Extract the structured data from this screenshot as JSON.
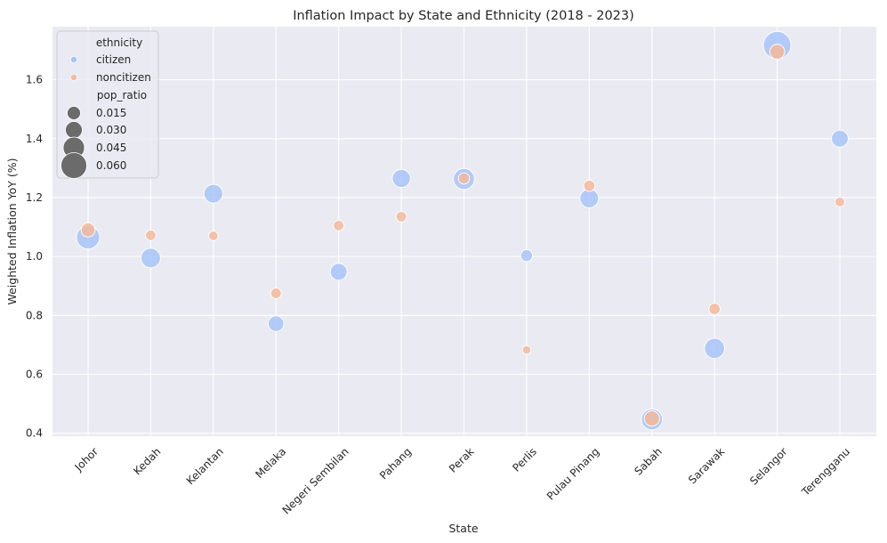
{
  "chart_data": {
    "type": "scatter",
    "title": "Inflation Impact by State and Ethnicity (2018 - 2023)",
    "xlabel": "State",
    "ylabel": "Weighted Inflation YoY (%)",
    "categories": [
      "Johor",
      "Kedah",
      "Kelantan",
      "Melaka",
      "Negeri Sembilan",
      "Pahang",
      "Perak",
      "Perlis",
      "Pulau Pinang",
      "Sabah",
      "Sarawak",
      "Selangor",
      "Terengganu"
    ],
    "ylim": [
      0.39,
      1.78
    ],
    "yticks": [
      "0.4",
      "0.6",
      "0.8",
      "1.0",
      "1.2",
      "1.4",
      "1.6"
    ],
    "grid": true,
    "background": "#eaeaf2",
    "series": [
      {
        "name": "citizen",
        "color": "#a8c4f8",
        "points": [
          {
            "state": "Johor",
            "y": 1.065,
            "size": 0.04
          },
          {
            "state": "Kedah",
            "y": 0.995,
            "size": 0.025
          },
          {
            "state": "Kelantan",
            "y": 1.213,
            "size": 0.022
          },
          {
            "state": "Melaka",
            "y": 0.772,
            "size": 0.013
          },
          {
            "state": "Negeri Sembilan",
            "y": 0.948,
            "size": 0.016
          },
          {
            "state": "Pahang",
            "y": 1.265,
            "size": 0.02
          },
          {
            "state": "Perak",
            "y": 1.263,
            "size": 0.03
          },
          {
            "state": "Perlis",
            "y": 1.003,
            "size": 0.005
          },
          {
            "state": "Pulau Pinang",
            "y": 1.197,
            "size": 0.022
          },
          {
            "state": "Sabah",
            "y": 0.447,
            "size": 0.03
          },
          {
            "state": "Sarawak",
            "y": 0.688,
            "size": 0.027
          },
          {
            "state": "Selangor",
            "y": 1.717,
            "size": 0.062
          },
          {
            "state": "Terengganu",
            "y": 1.4,
            "size": 0.016
          }
        ]
      },
      {
        "name": "noncitizen",
        "color": "#f4b99b",
        "points": [
          {
            "state": "Johor",
            "y": 1.09,
            "size": 0.009
          },
          {
            "state": "Kedah",
            "y": 1.072,
            "size": 0.003
          },
          {
            "state": "Kelantan",
            "y": 1.07,
            "size": 0.002
          },
          {
            "state": "Melaka",
            "y": 0.875,
            "size": 0.003
          },
          {
            "state": "Negeri Sembilan",
            "y": 1.105,
            "size": 0.003
          },
          {
            "state": "Pahang",
            "y": 1.135,
            "size": 0.003
          },
          {
            "state": "Perak",
            "y": 1.265,
            "size": 0.004
          },
          {
            "state": "Perlis",
            "y": 0.683,
            "size": 0.001
          },
          {
            "state": "Pulau Pinang",
            "y": 1.24,
            "size": 0.004
          },
          {
            "state": "Sabah",
            "y": 0.45,
            "size": 0.012
          },
          {
            "state": "Sarawak",
            "y": 0.822,
            "size": 0.004
          },
          {
            "state": "Selangor",
            "y": 1.695,
            "size": 0.011
          },
          {
            "state": "Terengganu",
            "y": 1.185,
            "size": 0.002
          }
        ]
      }
    ],
    "legend": {
      "placement": "upper-left",
      "hue_title": "ethnicity",
      "hue_entries": [
        {
          "label": "citizen",
          "color": "#a8c4f8"
        },
        {
          "label": "noncitizen",
          "color": "#f4b99b"
        }
      ],
      "size_title": "pop_ratio",
      "size_entries": [
        {
          "label": "0.015",
          "value": 0.015
        },
        {
          "label": "0.030",
          "value": 0.03
        },
        {
          "label": "0.045",
          "value": 0.045
        },
        {
          "label": "0.060",
          "value": 0.06
        }
      ],
      "size_marker_color": "#6b6b6b"
    }
  }
}
